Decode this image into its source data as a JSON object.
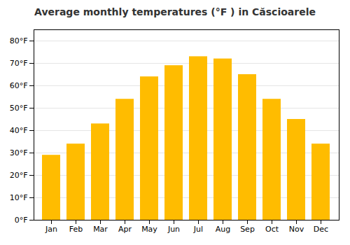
{
  "chart_data": {
    "type": "bar",
    "title": "Average monthly temperatures (°F ) in Căscioarele",
    "categories": [
      "Jan",
      "Feb",
      "Mar",
      "Apr",
      "May",
      "Jun",
      "Jul",
      "Aug",
      "Sep",
      "Oct",
      "Nov",
      "Dec"
    ],
    "values": [
      29,
      34,
      43,
      54,
      64,
      69,
      73,
      72,
      65,
      54,
      45,
      34
    ],
    "color": "#FFBC00",
    "ylim": [
      0,
      85
    ],
    "yticks": [
      {
        "value": 0,
        "label": "0°F"
      },
      {
        "value": 10,
        "label": "10°F"
      },
      {
        "value": 20,
        "label": "20°F"
      },
      {
        "value": 30,
        "label": "30°F"
      },
      {
        "value": 40,
        "label": "40°F"
      },
      {
        "value": 50,
        "label": "50°F"
      },
      {
        "value": 60,
        "label": "60°F"
      },
      {
        "value": 70,
        "label": "70°F"
      },
      {
        "value": 80,
        "label": "80°F"
      }
    ],
    "grid": true
  }
}
